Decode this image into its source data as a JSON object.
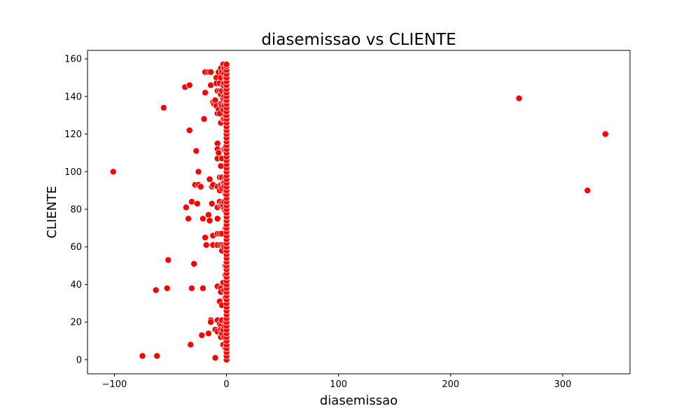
{
  "chart_data": {
    "type": "scatter",
    "title": "diasemissao vs CLIENTE",
    "xlabel": "diasemissao",
    "ylabel": "CLIENTE",
    "xlim": [
      -124,
      360
    ],
    "ylim": [
      -7.5,
      164.5
    ],
    "xticks": [
      -100,
      0,
      100,
      200,
      300
    ],
    "yticks": [
      0,
      20,
      40,
      60,
      80,
      100,
      120,
      140,
      160
    ],
    "grid": false,
    "legend": "none",
    "marker_color": "#ff0000",
    "series": [
      {
        "points": [
          [
            -101,
            100
          ],
          [
            -75,
            2
          ],
          [
            -62,
            2
          ],
          [
            -63,
            37
          ],
          [
            -53,
            38
          ],
          [
            -52,
            53
          ],
          [
            -56,
            134
          ],
          [
            -37,
            145
          ],
          [
            -33,
            146
          ],
          [
            -33,
            122
          ],
          [
            -36,
            81
          ],
          [
            -34,
            75
          ],
          [
            -31,
            84
          ],
          [
            -29,
            51
          ],
          [
            -31,
            38
          ],
          [
            -32,
            8
          ],
          [
            -28,
            93
          ],
          [
            -27,
            111
          ],
          [
            -25,
            100
          ],
          [
            -25,
            93
          ],
          [
            -23,
            92
          ],
          [
            -26,
            83
          ],
          [
            -22,
            13
          ],
          [
            -21,
            38
          ],
          [
            -21,
            75
          ],
          [
            -19,
            142
          ],
          [
            -20,
            128
          ],
          [
            -19,
            153
          ],
          [
            -19,
            65
          ],
          [
            -18,
            61
          ],
          [
            -16,
            153
          ],
          [
            -16,
            77
          ],
          [
            -15,
            74
          ],
          [
            -15,
            96
          ],
          [
            -16,
            14
          ],
          [
            -14,
            153
          ],
          [
            -14,
            146
          ],
          [
            -14,
            21
          ],
          [
            -14,
            20
          ],
          [
            -13,
            92
          ],
          [
            -13,
            83
          ],
          [
            -12,
            137
          ],
          [
            -12,
            93
          ],
          [
            -11,
            136
          ],
          [
            -12,
            66
          ],
          [
            -12,
            61
          ],
          [
            -10,
            16
          ],
          [
            -10,
            1
          ],
          [
            -10,
            138
          ],
          [
            -9,
            150
          ],
          [
            -9,
            147
          ],
          [
            -9,
            135
          ],
          [
            -8,
            143
          ],
          [
            -8,
            131
          ],
          [
            -8,
            115
          ],
          [
            -8,
            112
          ],
          [
            -8,
            107
          ],
          [
            -8,
            92
          ],
          [
            -8,
            81
          ],
          [
            -8,
            75
          ],
          [
            -8,
            67
          ],
          [
            -8,
            61
          ],
          [
            -8,
            39
          ],
          [
            -8,
            21
          ],
          [
            -8,
            15
          ],
          [
            -7,
            153
          ],
          [
            -7,
            133
          ],
          [
            -7,
            110
          ],
          [
            -6,
            147
          ],
          [
            -6,
            143
          ],
          [
            -6,
            131
          ],
          [
            -6,
            97
          ],
          [
            -6,
            90
          ],
          [
            -6,
            84
          ],
          [
            -6,
            67
          ],
          [
            -6,
            31
          ],
          [
            -6,
            19
          ],
          [
            -5,
            155
          ],
          [
            -5,
            150
          ],
          [
            -5,
            141
          ],
          [
            -5,
            136
          ],
          [
            -5,
            126
          ],
          [
            -5,
            103
          ],
          [
            -5,
            93
          ],
          [
            -5,
            82
          ],
          [
            -5,
            61
          ],
          [
            -5,
            38
          ],
          [
            -5,
            36
          ],
          [
            -5,
            18
          ],
          [
            -5,
            16
          ],
          [
            -5,
            12
          ],
          [
            -4,
            153
          ],
          [
            -4,
            143
          ],
          [
            -4,
            135
          ],
          [
            -4,
            107
          ],
          [
            -4,
            97
          ],
          [
            -4,
            91
          ],
          [
            -4,
            83
          ],
          [
            -4,
            67
          ],
          [
            -4,
            58
          ],
          [
            -4,
            29
          ],
          [
            -4,
            21
          ],
          [
            -4,
            14
          ],
          [
            -3,
            157
          ],
          [
            -3,
            146
          ],
          [
            -3,
            139
          ],
          [
            -3,
            133
          ],
          [
            -3,
            128
          ],
          [
            -3,
            94
          ],
          [
            -3,
            82
          ],
          [
            -3,
            61
          ],
          [
            -3,
            41
          ],
          [
            -3,
            16
          ],
          [
            -3,
            8
          ],
          [
            -2,
            155
          ],
          [
            -2,
            152
          ],
          [
            -2,
            147
          ],
          [
            -2,
            140
          ],
          [
            -2,
            135
          ],
          [
            -2,
            128
          ],
          [
            -2,
            112
          ],
          [
            -2,
            94
          ],
          [
            -2,
            92
          ],
          [
            -2,
            84
          ],
          [
            -2,
            80
          ],
          [
            -2,
            60
          ],
          [
            -2,
            37
          ],
          [
            -2,
            18
          ],
          [
            -2,
            12
          ],
          [
            -1,
            150
          ],
          [
            -1,
            143
          ],
          [
            -1,
            130
          ],
          [
            -1,
            113
          ],
          [
            -1,
            97
          ],
          [
            -1,
            88
          ],
          [
            -1,
            79
          ],
          [
            -1,
            70
          ],
          [
            -1,
            50
          ],
          [
            -1,
            45
          ],
          [
            -1,
            33
          ],
          [
            -1,
            20
          ],
          [
            -1,
            6
          ],
          [
            0,
            0
          ],
          [
            0,
            2
          ],
          [
            0,
            4
          ],
          [
            0,
            6
          ],
          [
            0,
            8
          ],
          [
            0,
            10
          ],
          [
            0,
            12
          ],
          [
            0,
            14
          ],
          [
            0,
            16
          ],
          [
            0,
            18
          ],
          [
            0,
            20
          ],
          [
            0,
            22
          ],
          [
            0,
            24
          ],
          [
            0,
            26
          ],
          [
            0,
            28
          ],
          [
            0,
            30
          ],
          [
            0,
            32
          ],
          [
            0,
            34
          ],
          [
            0,
            36
          ],
          [
            0,
            38
          ],
          [
            0,
            40
          ],
          [
            0,
            42
          ],
          [
            0,
            44
          ],
          [
            0,
            46
          ],
          [
            0,
            48
          ],
          [
            0,
            50
          ],
          [
            0,
            52
          ],
          [
            0,
            54
          ],
          [
            0,
            56
          ],
          [
            0,
            58
          ],
          [
            0,
            60
          ],
          [
            0,
            62
          ],
          [
            0,
            64
          ],
          [
            0,
            66
          ],
          [
            0,
            68
          ],
          [
            0,
            70
          ],
          [
            0,
            72
          ],
          [
            0,
            74
          ],
          [
            0,
            76
          ],
          [
            0,
            78
          ],
          [
            0,
            80
          ],
          [
            0,
            82
          ],
          [
            0,
            84
          ],
          [
            0,
            86
          ],
          [
            0,
            88
          ],
          [
            0,
            90
          ],
          [
            0,
            92
          ],
          [
            0,
            94
          ],
          [
            0,
            96
          ],
          [
            0,
            98
          ],
          [
            0,
            100
          ],
          [
            0,
            102
          ],
          [
            0,
            104
          ],
          [
            0,
            106
          ],
          [
            0,
            108
          ],
          [
            0,
            110
          ],
          [
            0,
            112
          ],
          [
            0,
            114
          ],
          [
            0,
            116
          ],
          [
            0,
            118
          ],
          [
            0,
            120
          ],
          [
            0,
            122
          ],
          [
            0,
            124
          ],
          [
            0,
            126
          ],
          [
            0,
            128
          ],
          [
            0,
            130
          ],
          [
            0,
            132
          ],
          [
            0,
            134
          ],
          [
            0,
            136
          ],
          [
            0,
            138
          ],
          [
            0,
            140
          ],
          [
            0,
            142
          ],
          [
            0,
            144
          ],
          [
            0,
            146
          ],
          [
            0,
            148
          ],
          [
            0,
            150
          ],
          [
            0,
            152
          ],
          [
            0,
            154
          ],
          [
            0,
            156
          ],
          [
            0,
            157
          ],
          [
            261,
            139
          ],
          [
            322,
            90
          ],
          [
            338,
            120
          ]
        ]
      }
    ]
  }
}
